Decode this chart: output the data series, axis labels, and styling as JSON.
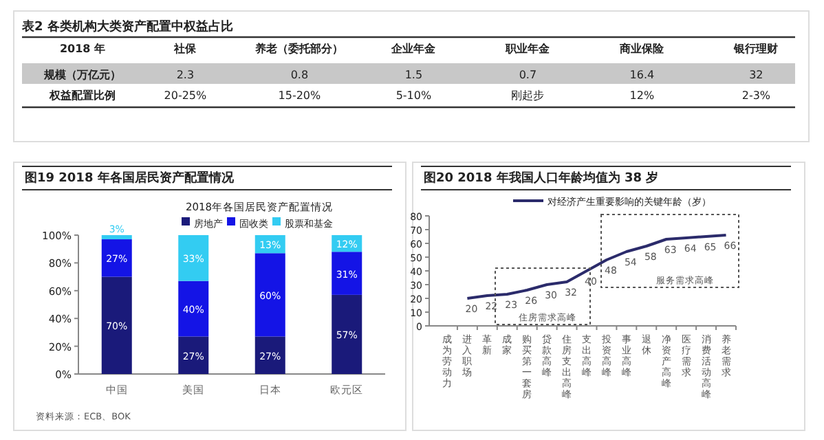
{
  "chart_data": [
    {
      "type": "other",
      "title": "表2 各类机构大类资产配置中权益占比",
      "legend_title": "2018 年",
      "categories": [
        "社保",
        "养老（委托部分）",
        "企业年金",
        "职业年金",
        "商业保险",
        "银行理财"
      ],
      "y_categories": [
        "规模（万亿元）",
        "权益配置比例"
      ],
      "cell_labels": [
        [
          "2.3",
          "0.8",
          "1.5",
          "0.7",
          "16.4",
          "32"
        ],
        [
          "20-25%",
          "15-20%",
          "5-10%",
          "刚起步",
          "12%",
          "2-3%"
        ]
      ]
    },
    {
      "type": "bar",
      "stacked": true,
      "title": "图19 2018 年各国居民资产配置情况",
      "subtitle": "2018年各国居民资产配置情况",
      "categories": [
        "中国",
        "美国",
        "日本",
        "欧元区"
      ],
      "series": [
        {
          "name": "房地产",
          "color": "#1a1a7a",
          "values": [
            70,
            27,
            27,
            57
          ]
        },
        {
          "name": "固收类",
          "color": "#1414e6",
          "values": [
            27,
            40,
            60,
            31
          ]
        },
        {
          "name": "股票和基金",
          "color": "#33ccf2",
          "values": [
            3,
            33,
            13,
            12
          ]
        }
      ],
      "ylim": [
        0,
        100
      ],
      "yticks": [
        {
          "value": 0,
          "label": "0%"
        },
        {
          "value": 20,
          "label": "20%"
        },
        {
          "value": 40,
          "label": "40%"
        },
        {
          "value": 60,
          "label": "60%"
        },
        {
          "value": 80,
          "label": "80%"
        },
        {
          "value": 100,
          "label": "100%"
        }
      ],
      "value_labels": [
        [
          "70%",
          "27%",
          "27%",
          "57%"
        ],
        [
          "27%",
          "40%",
          "60%",
          "31%"
        ],
        [
          "3%",
          "33%",
          "13%",
          "12%"
        ]
      ],
      "legend": "top",
      "annotations": [
        "资料来源：ECB、BOK"
      ]
    },
    {
      "type": "line",
      "title": "图20 2018 年我国人口年龄均值为 38 岁",
      "categories": [
        "成为劳动力",
        "进入职场",
        "革新",
        "成家",
        "购买第一套房",
        "贷款高峰",
        "住房支出高峰",
        "支出高峰",
        "投资高峰",
        "事业高峰",
        "退休",
        "净资产高峰",
        "医疗需求",
        "消费活动高峰",
        "养老需求"
      ],
      "series": [
        {
          "name": "对经济产生重要影响的关键年龄（岁）",
          "color": "#2b2b6b",
          "values": [
            null,
            20,
            22,
            23,
            26,
            30,
            32,
            40,
            48,
            54,
            58,
            63,
            64,
            65,
            66
          ]
        }
      ],
      "ylim": [
        0,
        80
      ],
      "yticks": [
        0,
        10,
        20,
        30,
        40,
        50,
        60,
        70,
        80
      ],
      "data_labels": true,
      "legend": "top",
      "annotations": [
        "住房需求高峰",
        "服务需求高峰"
      ]
    }
  ]
}
